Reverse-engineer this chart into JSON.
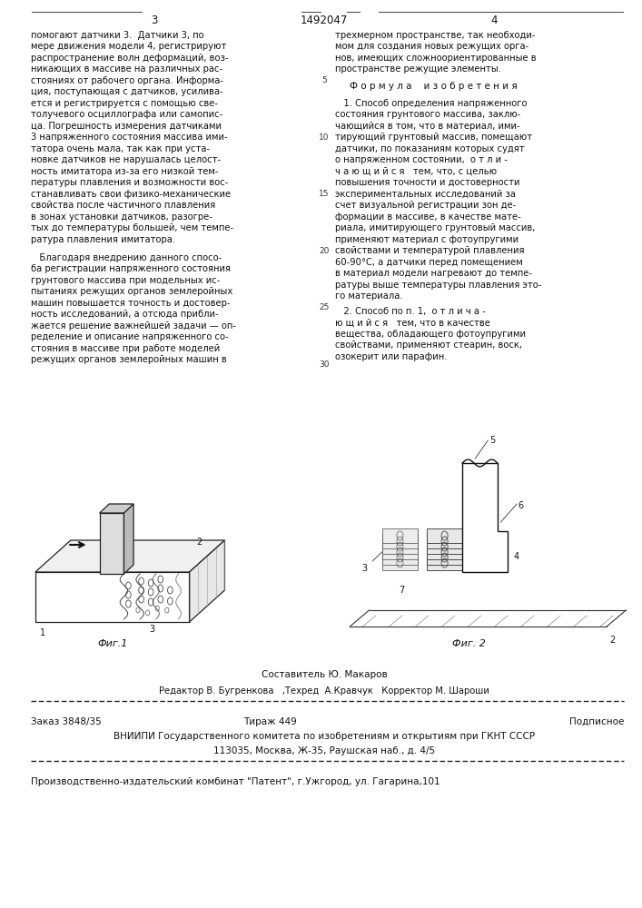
{
  "patent_number": "1492047",
  "page_left": "3",
  "page_right": "4",
  "bg_color": "#ffffff",
  "text_color": "#111111",
  "line_numbers": [
    [
      5,
      5
    ],
    [
      10,
      10
    ],
    [
      15,
      15
    ],
    [
      20,
      20
    ],
    [
      25,
      25
    ],
    [
      30,
      30
    ]
  ],
  "left_col_lines": [
    "помогают датчики 3.  Датчики 3, по",
    "мере движения модели 4, регистрируют",
    "распространение волн деформаций, воз-",
    "никающих в массиве на различных рас-",
    "стояниях от рабочего органа. Информа-",
    "ция, поступающая с датчиков, усилива-",
    "ется и регистрируется с помощью све-",
    "толучевого осциллографа или самопис-",
    "ца. Погрешность измерения датчиками",
    "3 напряженного состояния массива ими-",
    "татора очень мала, так как при уста-",
    "новке датчиков не нарушалась целост-",
    "ность имитатора из-за его низкой тем-",
    "пературы плавления и возможности вос-",
    "станавливать свои физико-механические",
    "свойства после частичного плавления",
    "в зонах установки датчиков, разогре-",
    "тых до температуры большей, чем темпе-",
    "ратура плавления имитатора."
  ],
  "left_col_lines2": [
    "   Благодаря внедрению данного спосо-",
    "ба регистрации напряженного состояния",
    "грунтового массива при модельных ис-",
    "пытаниях режущих органов землеройных",
    "машин повышается точность и достовер-",
    "ность исследований, а отсюда прибли-",
    "жается решение важнейшей задачи — оп-",
    "ределение и описание напряженного со-",
    "стояния в массиве при работе моделей",
    "режущих органов землеройных машин в"
  ],
  "right_col_lines": [
    "трехмерном пространстве, так необходи-",
    "мом для создания новых режущих орга-",
    "нов, имеющих сложноориентированные в",
    "пространстве режущие элементы."
  ],
  "formula_title": "Ф о р м у л а    и з о б р е т е н и я",
  "formula_lines1": [
    "   1. Способ определения напряженного",
    "состояния грунтового массива, заклю-",
    "чающийся в том, что в материал, ими-",
    "тирующий грунтовый массив, помещают",
    "датчики, по показаниям которых судят",
    "о напряженном состоянии,  о т л и -",
    "ч а ю щ и й с я   тем, что, с целью",
    "повышения точности и достоверности",
    "экспериментальных исследований за",
    "счет визуальной регистрации зон де-",
    "формации в массиве, в качестве мате-",
    "риала, имитирующего грунтовый массив,",
    "применяют материал с фотоупругими",
    "свойствами и температурой плавления",
    "60-90°С, а датчики перед помещением",
    "в материал модели нагревают до темпе-",
    "ратуры выше температуры плавления это-",
    "го материала."
  ],
  "formula_lines2": [
    "   2. Способ по п. 1,  о т л и ч а -",
    "ю щ и й с я   тем, что в качестве",
    "вещества, обладающего фотоупругими",
    "свойствами, применяют стеарин, воск,",
    "озокерит или парафин."
  ],
  "fig1_caption": "Фиг.1",
  "fig2_caption": "Фиг. 2",
  "footer_compiler": "Составитель Ю. Макаров",
  "footer_editor": "Редактор В. Бугренкова   ,Техред  А.Кравчук   Корректор М. Шароши",
  "footer_order": "Заказ 3848/35",
  "footer_print": "Тираж 449",
  "footer_subscription": "Подписное",
  "footer_org": "ВНИИПИ Государственного комитета по изобретениям и открытиям при ГКНТ СССР",
  "footer_address": "113035, Москва, Ж-35, Раушская наб., д. 4/5",
  "footer_publisher": "Производственно-издательский комбинат \"Патент\", г.Ужгород, ул. Гагарина,101"
}
